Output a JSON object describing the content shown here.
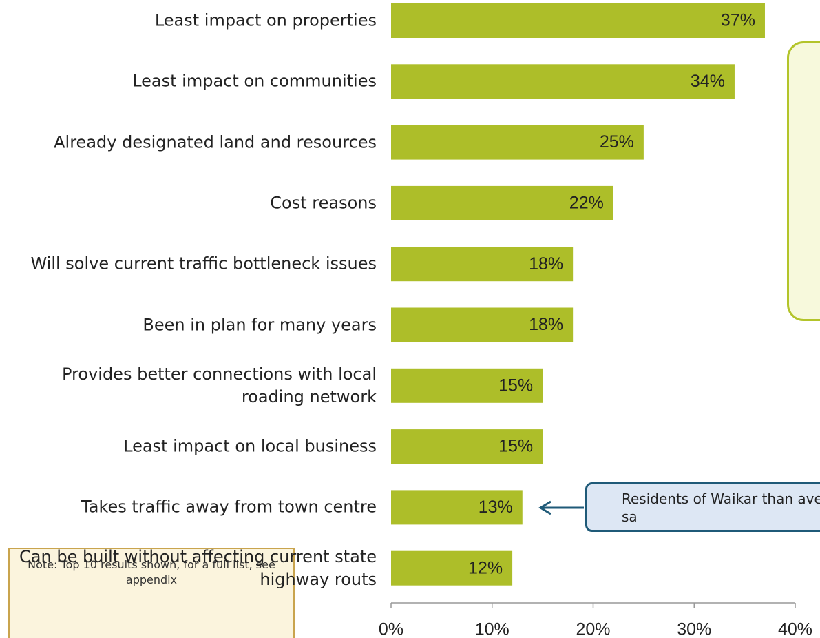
{
  "chart_data": {
    "type": "bar",
    "orientation": "horizontal",
    "categories": [
      "Least impact on properties",
      "Least impact on communities",
      "Already designated land and resources",
      "Cost reasons",
      "Will solve current traffic bottleneck issues",
      "Been in plan for many years",
      "Provides better connections with local roading network",
      "Least impact on local business",
      "Takes traffic away from town centre",
      "Can be built without affecting current state highway routs"
    ],
    "values": [
      37,
      34,
      25,
      22,
      18,
      18,
      15,
      15,
      13,
      12
    ],
    "value_labels": [
      "37%",
      "34%",
      "25%",
      "22%",
      "18%",
      "18%",
      "15%",
      "15%",
      "13%",
      "12%"
    ],
    "color": "#adbe29",
    "xlim": [
      0,
      40
    ],
    "xticks": [
      {
        "value": 0,
        "label": "0%"
      },
      {
        "value": 10,
        "label": "10%"
      },
      {
        "value": 20,
        "label": "20%"
      },
      {
        "value": 30,
        "label": "30%"
      },
      {
        "value": 40,
        "label": "40%"
      }
    ],
    "annotations": [
      "Residents of Waikar than average to sa"
    ],
    "note": "Note: Top 10 results shown, for a full list, see appendix"
  }
}
